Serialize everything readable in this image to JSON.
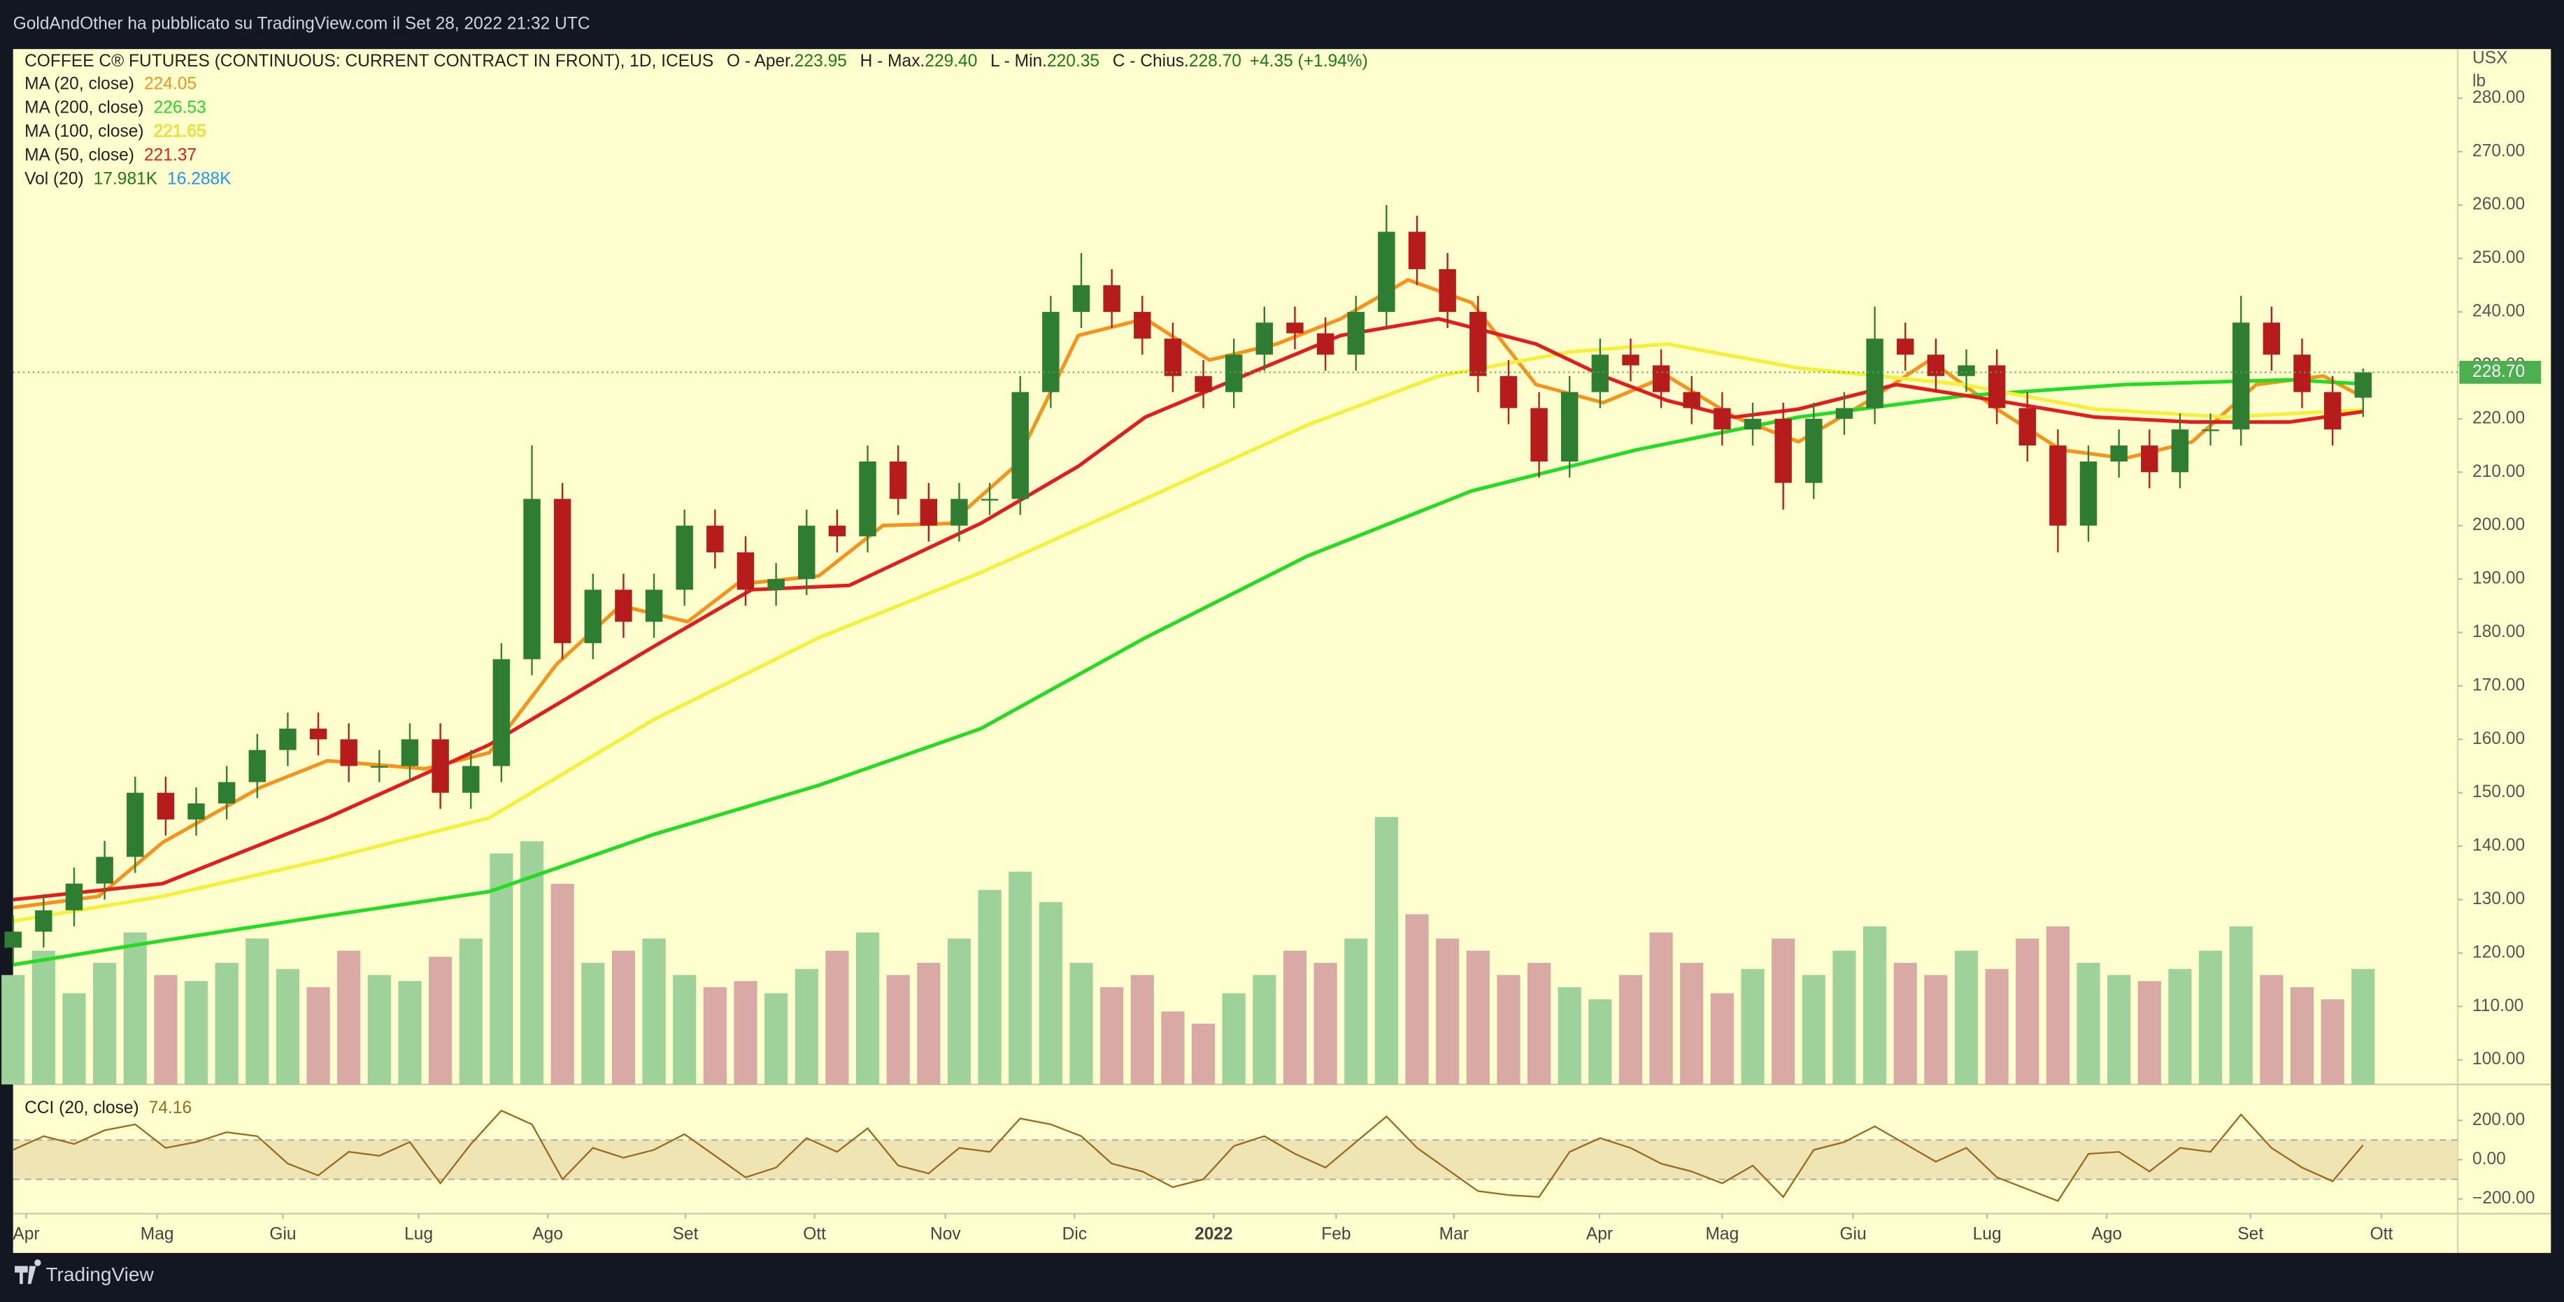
{
  "top_bar": {
    "text": "GoldAndOther ha pubblicato su TradingView.com il Set 28, 2022 21:32 UTC"
  },
  "bottom_bar": {
    "brand": "TradingView"
  },
  "chart_data": {
    "type": "candlestick",
    "legend": {
      "symbol": "COFFEE C® FUTURES (CONTINUOUS: CURRENT CONTRACT IN FRONT), 1D, ICEUS",
      "ohlc": [
        {
          "label": "O - Aper.",
          "value": "223.95"
        },
        {
          "label": "H - Max.",
          "value": "229.40"
        },
        {
          "label": "L - Min.",
          "value": "220.35"
        },
        {
          "label": "C - Chius.",
          "value": "228.70"
        }
      ],
      "change": "+4.35 (+1.94%)"
    },
    "unit": [
      "USX",
      "lb"
    ],
    "xlim": [
      0,
      80.1
    ],
    "xticks": [
      {
        "value": 0.43,
        "label": "Apr"
      },
      {
        "value": 4.72,
        "label": "Mag"
      },
      {
        "value": 8.84,
        "label": "Giu"
      },
      {
        "value": 13.29,
        "label": "Lug"
      },
      {
        "value": 17.52,
        "label": "Ago"
      },
      {
        "value": 22.03,
        "label": "Set"
      },
      {
        "value": 26.26,
        "label": "Ott"
      },
      {
        "value": 30.55,
        "label": "Nov"
      },
      {
        "value": 34.78,
        "label": "Dic"
      },
      {
        "value": 39.34,
        "label": "2022"
      },
      {
        "value": 43.35,
        "label": "Feb"
      },
      {
        "value": 47.21,
        "label": "Mar"
      },
      {
        "value": 51.98,
        "label": "Apr"
      },
      {
        "value": 56.0,
        "label": "Mag"
      },
      {
        "value": 60.29,
        "label": "Giu"
      },
      {
        "value": 64.68,
        "label": "Lug"
      },
      {
        "value": 68.6,
        "label": "Ago"
      },
      {
        "value": 73.31,
        "label": "Set"
      },
      {
        "value": 77.6,
        "label": "Ott"
      }
    ],
    "ylim": [
      95.4,
      289.2
    ],
    "yticks": [
      {
        "value": 100,
        "label": "100.00"
      },
      {
        "value": 110,
        "label": "110.00"
      },
      {
        "value": 120,
        "label": "120.00"
      },
      {
        "value": 130,
        "label": "130.00"
      },
      {
        "value": 140,
        "label": "140.00"
      },
      {
        "value": 150,
        "label": "150.00"
      },
      {
        "value": 160,
        "label": "160.00"
      },
      {
        "value": 170,
        "label": "170.00"
      },
      {
        "value": 180,
        "label": "180.00"
      },
      {
        "value": 190,
        "label": "190.00"
      },
      {
        "value": 200,
        "label": "200.00"
      },
      {
        "value": 210,
        "label": "210.00"
      },
      {
        "value": 220,
        "label": "220.00"
      },
      {
        "value": 230,
        "label": "230.00"
      },
      {
        "value": 240,
        "label": "240.00"
      },
      {
        "value": 250,
        "label": "250.00"
      },
      {
        "value": 260,
        "label": "260.00"
      },
      {
        "value": 270,
        "label": "270.00"
      },
      {
        "value": 280,
        "label": "280.00"
      }
    ],
    "last_price": {
      "value": 228.7,
      "label": "228.70",
      "color": "#4caf50"
    },
    "up_color": "#2e7d32",
    "down_color": "#b71c1c",
    "candles": {
      "x": [
        0,
        1,
        2,
        3,
        4,
        5,
        6,
        7,
        8,
        9,
        10,
        11,
        12,
        13,
        14,
        15,
        16,
        17,
        18,
        19,
        20,
        21,
        22,
        23,
        24,
        25,
        26,
        27,
        28,
        29,
        30,
        31,
        32,
        33,
        34,
        35,
        36,
        37,
        38,
        39,
        40,
        41,
        42,
        43,
        44,
        45,
        46,
        47,
        48,
        49,
        50,
        51,
        52,
        53,
        54,
        55,
        56,
        57,
        58,
        59,
        60,
        61,
        62,
        63,
        64,
        65,
        66,
        67,
        68,
        69,
        70,
        71,
        72,
        73,
        74,
        75,
        76,
        77
      ],
      "open": [
        121,
        124,
        128,
        133,
        138,
        150,
        145,
        148,
        152,
        158,
        162,
        160,
        155,
        155,
        160,
        150,
        155,
        175,
        205,
        178,
        188,
        182,
        188,
        200,
        195,
        188,
        190,
        200,
        198,
        212,
        205,
        200,
        205,
        205,
        225,
        240,
        245,
        240,
        235,
        228,
        225,
        232,
        238,
        236,
        232,
        240,
        255,
        248,
        240,
        228,
        222,
        212,
        225,
        232,
        230,
        225,
        222,
        218,
        220,
        208,
        220,
        222,
        235,
        232,
        228,
        230,
        222,
        215,
        200,
        212,
        215,
        210,
        218,
        218,
        238,
        232,
        225,
        223.95
      ],
      "high": [
        127,
        131,
        136,
        141,
        153,
        153,
        151,
        155,
        161,
        165,
        165,
        163,
        158,
        163,
        163,
        158,
        178,
        215,
        208,
        191,
        191,
        191,
        203,
        203,
        198,
        193,
        203,
        203,
        215,
        215,
        208,
        208,
        208,
        228,
        243,
        251,
        248,
        243,
        238,
        231,
        235,
        241,
        241,
        239,
        243,
        260,
        258,
        251,
        243,
        231,
        225,
        228,
        235,
        235,
        233,
        228,
        225,
        223,
        223,
        223,
        225,
        241,
        238,
        235,
        233,
        233,
        225,
        218,
        215,
        218,
        218,
        221,
        221,
        243,
        241,
        235,
        228,
        229.4
      ],
      "low": [
        118,
        121,
        125,
        130,
        135,
        142,
        142,
        145,
        149,
        155,
        157,
        152,
        152,
        152,
        147,
        147,
        152,
        172,
        175,
        175,
        179,
        179,
        185,
        192,
        185,
        185,
        187,
        195,
        195,
        202,
        197,
        197,
        202,
        202,
        222,
        237,
        237,
        232,
        225,
        222,
        222,
        229,
        233,
        229,
        229,
        237,
        245,
        237,
        225,
        219,
        209,
        209,
        222,
        227,
        222,
        219,
        215,
        215,
        203,
        205,
        217,
        219,
        229,
        225,
        225,
        219,
        212,
        195,
        197,
        209,
        207,
        207,
        215,
        215,
        229,
        222,
        215,
        220.35
      ],
      "close": [
        124,
        128,
        133,
        138,
        150,
        145,
        148,
        152,
        158,
        162,
        160,
        155,
        155,
        160,
        150,
        155,
        175,
        205,
        178,
        188,
        182,
        188,
        200,
        195,
        188,
        190,
        200,
        198,
        212,
        205,
        200,
        205,
        205,
        225,
        240,
        245,
        240,
        235,
        228,
        225,
        232,
        238,
        236,
        232,
        240,
        255,
        248,
        240,
        228,
        222,
        212,
        225,
        232,
        230,
        225,
        222,
        218,
        220,
        208,
        220,
        222,
        235,
        232,
        228,
        230,
        222,
        215,
        200,
        212,
        215,
        210,
        218,
        218,
        238,
        232,
        225,
        218,
        228.7
      ]
    },
    "moving_averages": [
      {
        "name": "MA (20, close)",
        "value_label": "224.05",
        "color": "#f7931a",
        "x": [
          0,
          2.8,
          4.9,
          8.1,
          10.3,
          13.5,
          15.6,
          17.8,
          19.9,
          22.1,
          23.7,
          26.4,
          28.5,
          30.7,
          32.8,
          34.9,
          37.1,
          39.2,
          41.4,
          43.5,
          45.7,
          47.8,
          49.9,
          52.1,
          54.2,
          56.4,
          58.5,
          60.7,
          62.8,
          65.0,
          67.1,
          69.2,
          71.4,
          73.5,
          75.7,
          77
        ],
        "values": [
          128.5,
          130.6,
          140.7,
          151,
          156,
          154.5,
          157.5,
          174,
          185,
          182,
          189,
          190.6,
          200,
          200.4,
          211,
          235.6,
          238.7,
          231,
          234,
          238.7,
          246,
          241.7,
          226.4,
          223,
          228,
          220.3,
          215.7,
          223,
          231,
          221.8,
          214.2,
          212.6,
          215.7,
          226.4,
          228,
          224.05
        ]
      },
      {
        "name": "MA (200, close)",
        "value_label": "226.53",
        "color": "#22dd22",
        "x": [
          0,
          4.9,
          10.3,
          15.6,
          21.0,
          26.4,
          31.7,
          37.1,
          42.4,
          47.8,
          53.2,
          58.5,
          63.9,
          69.2,
          74.6,
          77
        ],
        "values": [
          117.8,
          122.3,
          127,
          131.5,
          142.2,
          151.4,
          162,
          179,
          194.3,
          206.5,
          214.2,
          220.3,
          224.3,
          226.4,
          227.3,
          226.53
        ]
      },
      {
        "name": "MA (100, close)",
        "value_label": "221.65",
        "color": "#f5f03a",
        "x": [
          0,
          4.9,
          10.3,
          15.6,
          21.0,
          26.4,
          31.7,
          37.1,
          42.4,
          46.7,
          51.0,
          54.2,
          58.5,
          63.9,
          68.2,
          72.5,
          77
        ],
        "values": [
          126,
          130.6,
          137.6,
          145.3,
          163.7,
          179,
          191.2,
          205,
          218.8,
          228,
          232.5,
          234,
          229.5,
          226.4,
          221.8,
          220.3,
          221.65
        ]
      },
      {
        "name": "MA (50, close)",
        "value_label": "221.37",
        "color": "#e51c1c",
        "x": [
          0,
          4.9,
          10.3,
          15.6,
          21.0,
          24.2,
          27.4,
          31.7,
          34.9,
          37.1,
          40.3,
          43.5,
          46.7,
          49.9,
          52.1,
          54.2,
          56.4,
          58.5,
          61.7,
          65.0,
          68.2,
          71.4,
          74.6,
          77
        ],
        "values": [
          130,
          133,
          145.3,
          159,
          177.4,
          188,
          188.8,
          200.4,
          211.1,
          220.3,
          228,
          235.6,
          238.7,
          234,
          228,
          223.4,
          220.3,
          221.8,
          226.4,
          223.4,
          220.3,
          219.4,
          219.4,
          221.37
        ]
      }
    ],
    "volume": {
      "name": "Vol (20)",
      "legend_values": [
        {
          "label": "17.981K",
          "color": "#1b7a1b"
        },
        {
          "label": "16.288K",
          "color": "#2196f3"
        }
      ],
      "ylim": [
        0,
        60
      ],
      "up_color": "#9fd19b",
      "down_color": "#d9aaa5",
      "values": [
        18,
        22,
        15,
        20,
        25,
        18,
        17,
        20,
        24,
        19,
        16,
        22,
        18,
        17,
        21,
        24,
        38,
        40,
        33,
        20,
        22,
        24,
        18,
        16,
        17,
        15,
        19,
        22,
        25,
        18,
        20,
        24,
        32,
        35,
        30,
        20,
        16,
        18,
        12,
        10,
        15,
        18,
        22,
        20,
        24,
        44,
        28,
        24,
        22,
        18,
        20,
        16,
        14,
        18,
        25,
        20,
        15,
        19,
        24,
        18,
        22,
        26,
        20,
        18,
        22,
        19,
        24,
        26,
        20,
        18,
        17,
        19,
        22,
        26,
        18,
        16,
        14,
        19
      ]
    },
    "cci": {
      "name": "CCI (20, close)",
      "legend_value": "74.16",
      "color": "#9c6b1e",
      "ylim": [
        -275,
        383
      ],
      "yticks": [
        {
          "value": 200,
          "label": "200.00"
        },
        {
          "value": 0,
          "label": "0.00"
        },
        {
          "value": -200,
          "label": "−200.00"
        }
      ],
      "band": [
        -100,
        100
      ],
      "band_color": "#e8d9a8",
      "values": [
        50,
        120,
        80,
        150,
        180,
        60,
        90,
        140,
        120,
        -20,
        -80,
        40,
        20,
        90,
        -120,
        80,
        250,
        180,
        -100,
        60,
        10,
        50,
        130,
        20,
        -90,
        -40,
        110,
        40,
        160,
        -30,
        -70,
        60,
        40,
        210,
        180,
        120,
        -20,
        -60,
        -140,
        -100,
        70,
        120,
        30,
        -40,
        90,
        220,
        60,
        -50,
        -160,
        -180,
        -190,
        40,
        110,
        60,
        -20,
        -60,
        -120,
        -30,
        -190,
        50,
        90,
        170,
        80,
        -10,
        60,
        -90,
        -150,
        -210,
        30,
        40,
        -60,
        60,
        40,
        230,
        60,
        -40,
        -110,
        74.16
      ]
    }
  }
}
